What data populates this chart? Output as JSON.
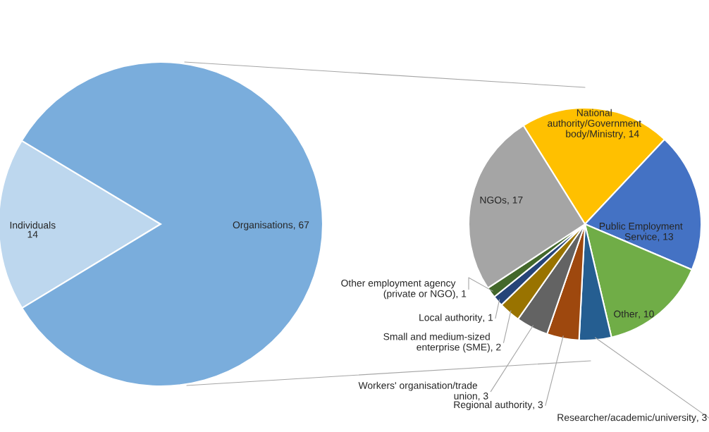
{
  "chart_data": [
    {
      "type": "pie",
      "categories": [
        "Individuals",
        "Organisations"
      ],
      "values": [
        14,
        67
      ],
      "colors": [
        "#bdd7ee",
        "#7aaddc"
      ],
      "value_labels": [
        "14",
        ", 67"
      ]
    },
    {
      "type": "pie",
      "categories": [
        "National authority/Government body/Ministry",
        "Public Employment Service",
        "Other",
        "Researcher/academic/university",
        "Regional authority",
        "Workers' organisation/trade union",
        "Small and medium-sized enterprise (SME)",
        "Local authority",
        "Other employment agency (private or NGO)",
        "NGOs"
      ],
      "values": [
        14,
        13,
        10,
        3,
        3,
        3,
        2,
        1,
        1,
        17
      ],
      "colors": [
        "#ffc000",
        "#4472c4",
        "#70ad47",
        "#255e91",
        "#9e480e",
        "#636363",
        "#997300",
        "#264478",
        "#43682b",
        "#a5a5a5"
      ],
      "value_labels": [
        ", 14",
        ", 13",
        ", 10",
        ", 3",
        ", 3",
        ", 3",
        ", 2",
        ", 1",
        ", 1",
        ", 17"
      ]
    }
  ]
}
